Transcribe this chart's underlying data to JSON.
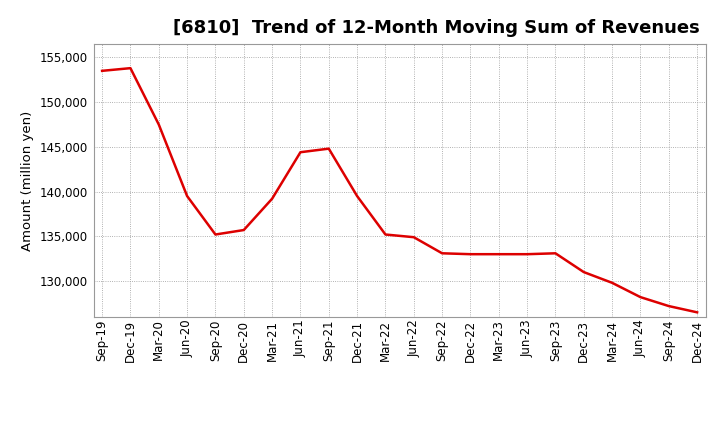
{
  "title": "[6810]  Trend of 12-Month Moving Sum of Revenues",
  "ylabel": "Amount (million yen)",
  "line_color": "#dd0000",
  "background_color": "#ffffff",
  "plot_bg_color": "#ffffff",
  "grid_color": "#999999",
  "labels": [
    "Sep-19",
    "Dec-19",
    "Mar-20",
    "Jun-20",
    "Sep-20",
    "Dec-20",
    "Mar-21",
    "Jun-21",
    "Sep-21",
    "Dec-21",
    "Mar-22",
    "Jun-22",
    "Sep-22",
    "Dec-22",
    "Mar-23",
    "Jun-23",
    "Sep-23",
    "Dec-23",
    "Mar-24",
    "Jun-24",
    "Sep-24",
    "Dec-24"
  ],
  "values": [
    153500,
    153800,
    147500,
    139500,
    135200,
    135700,
    139200,
    144400,
    144800,
    139500,
    135200,
    134900,
    133100,
    133000,
    133000,
    133000,
    133100,
    131000,
    129800,
    128200,
    127200,
    126500
  ],
  "ylim_min": 126000,
  "ylim_max": 156500,
  "yticks": [
    130000,
    135000,
    140000,
    145000,
    150000,
    155000
  ],
  "title_fontsize": 13,
  "tick_fontsize": 8.5,
  "ylabel_fontsize": 9.5,
  "linewidth": 1.8
}
